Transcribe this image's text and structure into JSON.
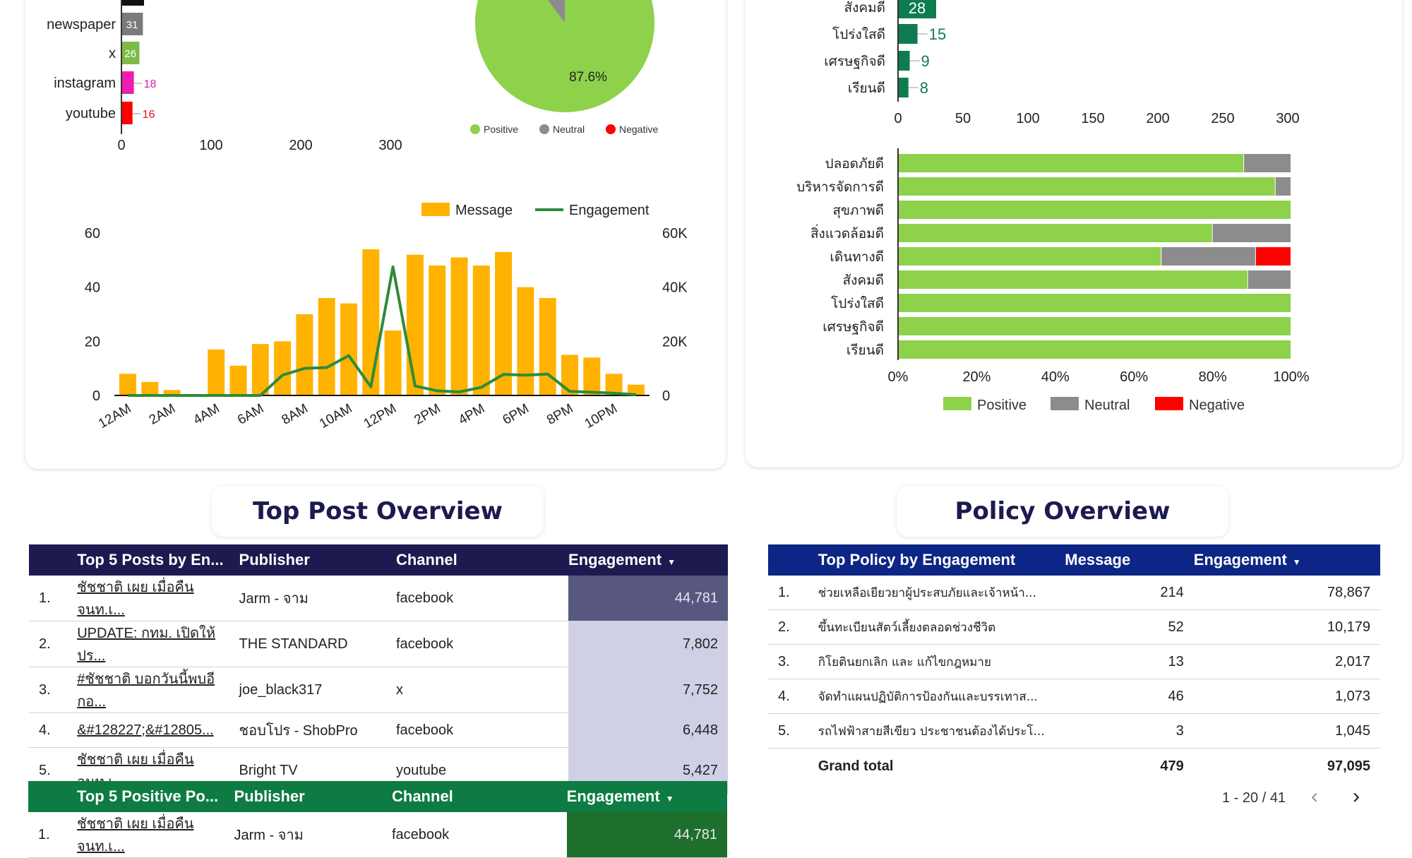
{
  "colors": {
    "positive": "#8ed14b",
    "neutral": "#8c8c8c",
    "negative": "#ff0000",
    "message": "#ffb300",
    "engagement": "#2e8b3a",
    "post_header": "#1c1a4f",
    "policy_header": "#0d2584",
    "positive_header": "#0e7c42",
    "accent_bar": "#0e7c4e"
  },
  "channel_chart": {
    "rows": [
      {
        "label": "newspaper",
        "value": 31
      },
      {
        "label": "x",
        "value": 26
      },
      {
        "label": "instagram",
        "value": 18
      },
      {
        "label": "youtube",
        "value": 16
      }
    ],
    "ticks": [
      "0",
      "100",
      "200",
      "300"
    ]
  },
  "sentiment_pie": {
    "positive_pct": 87.6,
    "label": "87.6%",
    "legend": [
      "Positive",
      "Neutral",
      "Negative"
    ]
  },
  "hourly_chart": {
    "legend": {
      "message": "Message",
      "engagement": "Engagement"
    },
    "left_ticks": [
      "0",
      "20",
      "40",
      "60"
    ],
    "right_ticks": [
      "0",
      "20K",
      "40K",
      "60K"
    ],
    "x_labels": [
      "12AM",
      "2AM",
      "4AM",
      "6AM",
      "8AM",
      "10AM",
      "12PM",
      "2PM",
      "4PM",
      "6PM",
      "8PM",
      "10PM"
    ],
    "messages": [
      8,
      5,
      2,
      0,
      17,
      11,
      19,
      20,
      30,
      36,
      34,
      54,
      24,
      52,
      48,
      51,
      48,
      53,
      40,
      36,
      15,
      14,
      8,
      4
    ],
    "engagement": [
      0,
      0,
      0,
      0,
      0,
      0,
      0,
      7500,
      10000,
      10300,
      14700,
      3200,
      47500,
      3500,
      1700,
      1300,
      3000,
      7800,
      7500,
      7900,
      1500,
      1200,
      800,
      300
    ]
  },
  "policy_count_chart": {
    "rows": [
      {
        "label": "สังคมดี",
        "value": 28
      },
      {
        "label": "โปร่งใสดี",
        "value": 15
      },
      {
        "label": "เศรษฐกิจดี",
        "value": 9
      },
      {
        "label": "เรียนดี",
        "value": 8
      }
    ],
    "ticks": [
      "0",
      "50",
      "100",
      "150",
      "200",
      "250",
      "300"
    ]
  },
  "policy_sentiment_chart": {
    "rows": [
      {
        "label": "ปลอดภัยดี",
        "positive": 88,
        "neutral": 12,
        "negative": 0
      },
      {
        "label": "บริหารจัดการดี",
        "positive": 96,
        "neutral": 4,
        "negative": 0
      },
      {
        "label": "สุขภาพดี",
        "positive": 100,
        "neutral": 0,
        "negative": 0
      },
      {
        "label": "สิ่งแวดล้อมดี",
        "positive": 80,
        "neutral": 20,
        "negative": 0
      },
      {
        "label": "เดินทางดี",
        "positive": 67,
        "neutral": 24,
        "negative": 9
      },
      {
        "label": "สังคมดี",
        "positive": 89,
        "neutral": 11,
        "negative": 0
      },
      {
        "label": "โปร่งใสดี",
        "positive": 100,
        "neutral": 0,
        "negative": 0
      },
      {
        "label": "เศรษฐกิจดี",
        "positive": 100,
        "neutral": 0,
        "negative": 0
      },
      {
        "label": "เรียนดี",
        "positive": 100,
        "neutral": 0,
        "negative": 0
      }
    ],
    "ticks": [
      "0%",
      "20%",
      "40%",
      "60%",
      "80%",
      "100%"
    ],
    "legend": [
      "Positive",
      "Neutral",
      "Negative"
    ]
  },
  "top_post": {
    "title": "Top Post Overview",
    "headers": [
      "Top 5 Posts by En...",
      "Publisher",
      "Channel",
      "Engagement"
    ],
    "rows": [
      {
        "rank": "1.",
        "post": "ชัชชาติ เผย เมื่อคืน จนท.เ...",
        "publisher": "Jarm - จาม",
        "channel": "facebook",
        "engagement": "44,781"
      },
      {
        "rank": "2.",
        "post": "UPDATE: กทม. เปิดให้ปร...",
        "publisher": "THE STANDARD",
        "channel": "facebook",
        "engagement": "7,802"
      },
      {
        "rank": "3.",
        "post": "#ชัชชาติ บอกวันนี้พบอีกอ...",
        "publisher": "joe_black317",
        "channel": "x",
        "engagement": "7,752"
      },
      {
        "rank": "4.",
        "post": "&#128227;&#12805...",
        "publisher": "ชอบโปร - ShobPro",
        "channel": "facebook",
        "engagement": "6,448"
      },
      {
        "rank": "5.",
        "post": "ชัชชาติ เผย เมื่อคืน จนท.เ...",
        "publisher": "Bright TV",
        "channel": "youtube",
        "engagement": "5,427"
      }
    ]
  },
  "top_positive": {
    "headers": [
      "Top 5 Positive Po...",
      "Publisher",
      "Channel",
      "Engagement"
    ],
    "rows": [
      {
        "rank": "1.",
        "post": "ชัชชาติ เผย เมื่อคืน จนท.เ...",
        "publisher": "Jarm - จาม",
        "channel": "facebook",
        "engagement": "44,781"
      }
    ]
  },
  "policy": {
    "title": "Policy Overview",
    "headers": [
      "Top Policy by Engagement",
      "Message",
      "Engagement"
    ],
    "rows": [
      {
        "rank": "1.",
        "policy": "ช่วยเหลือเยียวยาผู้ประสบภัยและเจ้าหน้า...",
        "message": "214",
        "engagement": "78,867"
      },
      {
        "rank": "2.",
        "policy": "ขึ้นทะเบียนสัตว์เลี้ยงตลอดช่วงชีวิต",
        "message": "52",
        "engagement": "10,179"
      },
      {
        "rank": "3.",
        "policy": "กิโยตินยกเลิก และ แก้ไขกฎหมาย",
        "message": "13",
        "engagement": "2,017"
      },
      {
        "rank": "4.",
        "policy": "จัดทำแผนปฏิบัติการป้องกันและบรรเทาส...",
        "message": "46",
        "engagement": "1,073"
      },
      {
        "rank": "5.",
        "policy": "รถไฟฟ้าสายสีเขียว ประชาชนต้องได้ประโ...",
        "message": "3",
        "engagement": "1,045"
      }
    ],
    "grand_total": {
      "label": "Grand total",
      "message": "479",
      "engagement": "97,095"
    },
    "pagination": "1 - 20 / 41"
  }
}
